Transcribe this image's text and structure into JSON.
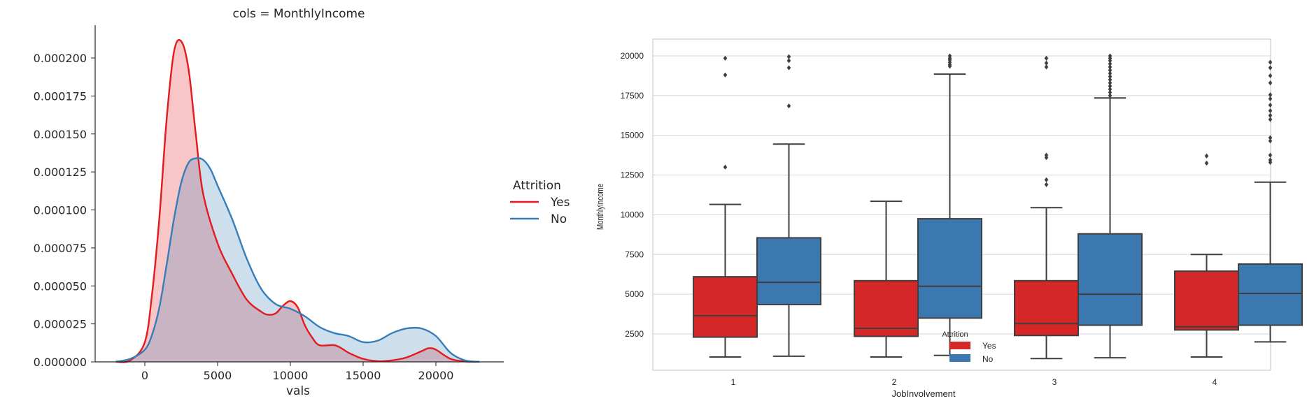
{
  "chart_data": [
    {
      "type": "area",
      "title": "cols = MonthlyIncome",
      "xlabel": "vals",
      "ylabel": "",
      "xlim": [
        -3000,
        25000
      ],
      "ylim": [
        0,
        0.00022
      ],
      "x_ticks": [
        0,
        5000,
        10000,
        15000,
        20000
      ],
      "x_tick_labels": [
        "0",
        "5000",
        "10000",
        "15000",
        "20000"
      ],
      "y_ticks": [
        0,
        2.5e-05,
        5e-05,
        7.5e-05,
        0.0001,
        0.000125,
        0.00015,
        0.000175,
        0.0002
      ],
      "y_tick_labels": [
        "0.000000",
        "0.000025",
        "0.000050",
        "0.000075",
        "0.000100",
        "0.000125",
        "0.000150",
        "0.000175",
        "0.000200"
      ],
      "legend": {
        "title": "Attrition",
        "position": "right"
      },
      "series": [
        {
          "name": "Yes",
          "color": "#e41a1c",
          "x": [
            -2000,
            -1000,
            0,
            500,
            1000,
            1500,
            2000,
            2500,
            3000,
            3500,
            4000,
            5000,
            6000,
            7000,
            8000,
            8500,
            9000,
            9500,
            10000,
            10500,
            11000,
            11500,
            12000,
            13000,
            13500,
            14000,
            15000,
            16000,
            17000,
            18000,
            19000,
            19500,
            20000,
            21000,
            22000,
            23000
          ],
          "y": [
            1e-07,
            1e-06,
            1.3e-05,
            4.5e-05,
            9.5e-05,
            0.00016,
            0.000204,
            0.000211,
            0.000193,
            0.00015,
            0.000111,
            7.8e-05,
            5.8e-05,
            4.1e-05,
            3.3e-05,
            3.1e-05,
            3.2e-05,
            3.7e-05,
            4e-05,
            3.6e-05,
            2.4e-05,
            1.6e-05,
            1.1e-05,
            1.1e-05,
            9e-06,
            6e-06,
            2e-06,
            5e-07,
            1e-06,
            3e-06,
            7e-06,
            9e-06,
            8e-06,
            2e-06,
            3e-07,
            1e-07
          ]
        },
        {
          "name": "No",
          "color": "#377eb8",
          "x": [
            -2000,
            -1000,
            0,
            500,
            1000,
            1500,
            2000,
            2500,
            3000,
            3500,
            4000,
            4500,
            5000,
            6000,
            7000,
            8000,
            9000,
            10000,
            11000,
            12000,
            13000,
            14000,
            15000,
            16000,
            17000,
            18000,
            19000,
            20000,
            21000,
            22000,
            23000
          ],
          "y": [
            1e-07,
            2e-06,
            8e-06,
            1.8e-05,
            3.6e-05,
            6.4e-05,
            9.4e-05,
            0.000118,
            0.000131,
            0.000134,
            0.000133,
            0.000127,
            0.000116,
            9.4e-05,
            6.8e-05,
            4.8e-05,
            3.8e-05,
            3.5e-05,
            3e-05,
            2.3e-05,
            1.9e-05,
            1.7e-05,
            1.3e-05,
            1.4e-05,
            1.9e-05,
            2.2e-05,
            2.2e-05,
            1.7e-05,
            6e-06,
            1e-06,
            1e-07
          ]
        }
      ]
    },
    {
      "type": "box",
      "title": "",
      "xlabel": "JobInvolvement",
      "ylabel": "MonthlyIncome",
      "ylim": [
        1000,
        21000
      ],
      "y_ticks": [
        2500,
        5000,
        7500,
        10000,
        12500,
        15000,
        17500,
        20000
      ],
      "y_tick_labels": [
        "2500",
        "5000",
        "7500",
        "10000",
        "12500",
        "15000",
        "17500",
        "20000"
      ],
      "categories": [
        "1",
        "2",
        "3",
        "4"
      ],
      "legend": {
        "title": "Attrition",
        "position": "bottom-center"
      },
      "series": [
        {
          "name": "Yes",
          "color": "#d62728",
          "boxes": [
            {
              "q1": 2300,
              "median": 3650,
              "q3": 6100,
              "whisker_low": 1050,
              "whisker_high": 10650,
              "outliers": [
                13000,
                18800,
                19850
              ]
            },
            {
              "q1": 2350,
              "median": 2850,
              "q3": 5850,
              "whisker_low": 1050,
              "whisker_high": 10850,
              "outliers": []
            },
            {
              "q1": 2400,
              "median": 3150,
              "q3": 5850,
              "whisker_low": 950,
              "whisker_high": 10450,
              "outliers": [
                11900,
                12200,
                13600,
                13750,
                19300,
                19550,
                19850
              ]
            },
            {
              "q1": 2750,
              "median": 2950,
              "q3": 6450,
              "whisker_low": 1050,
              "whisker_high": 7500,
              "outliers": [
                13250,
                13700
              ]
            }
          ]
        },
        {
          "name": "No",
          "color": "#3a78af",
          "boxes": [
            {
              "q1": 4350,
              "median": 5750,
              "q3": 8550,
              "whisker_low": 1100,
              "whisker_high": 14450,
              "outliers": [
                16850,
                19250,
                19700,
                19950
              ]
            },
            {
              "q1": 3500,
              "median": 5500,
              "q3": 9750,
              "whisker_low": 1150,
              "whisker_high": 18850,
              "outliers": [
                19350,
                19450,
                19600,
                19750,
                19850,
                20000
              ]
            },
            {
              "q1": 3050,
              "median": 5000,
              "q3": 8800,
              "whisker_low": 1000,
              "whisker_high": 17350,
              "outliers": [
                17500,
                17700,
                17900,
                18100,
                18300,
                18500,
                18700,
                18900,
                19100,
                19300,
                19500,
                19700,
                19850,
                20000
              ]
            },
            {
              "q1": 3050,
              "median": 5050,
              "q3": 6900,
              "whisker_low": 2000,
              "whisker_high": 12050,
              "outliers": [
                13300,
                13450,
                13750,
                14650,
                14850,
                16000,
                16250,
                16550,
                16900,
                17300,
                17550,
                18300,
                18750,
                19250,
                19600
              ]
            }
          ]
        }
      ]
    }
  ]
}
